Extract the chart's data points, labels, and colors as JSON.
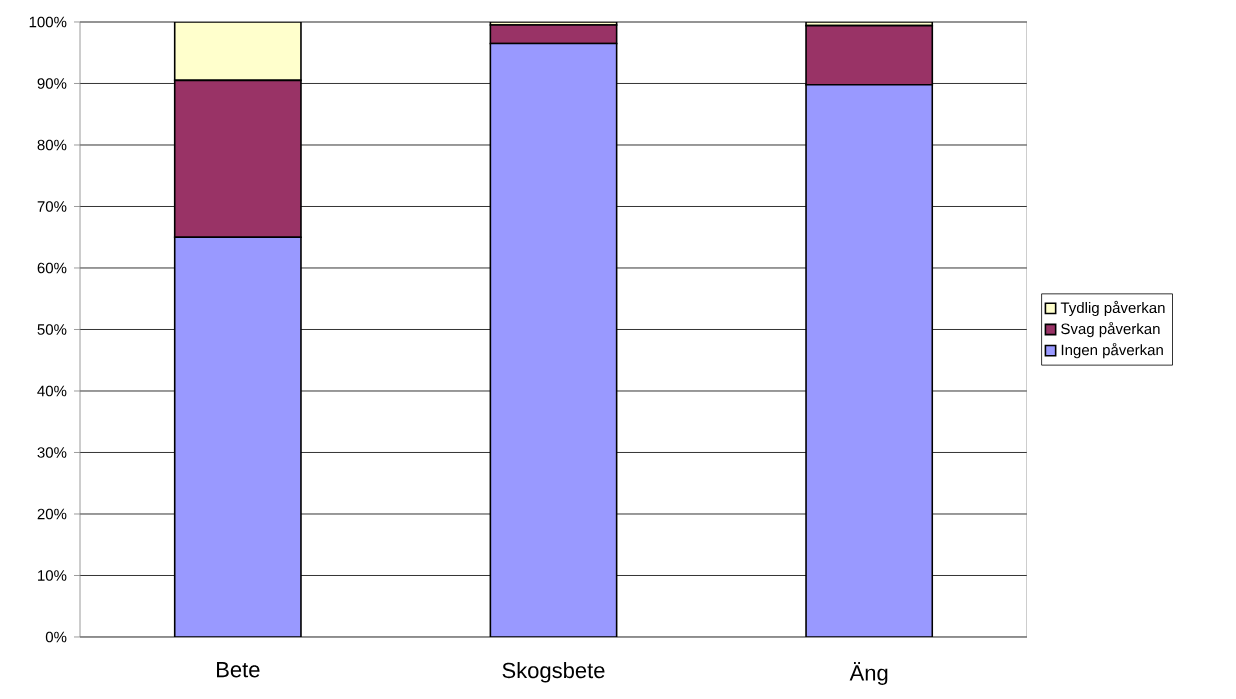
{
  "chart_data": {
    "type": "bar",
    "stacked": true,
    "categories": [
      "Bete",
      "Skogsbete",
      "Äng"
    ],
    "series": [
      {
        "name": "Ingen påverkan",
        "color": "#9999ff",
        "values": [
          65,
          96.5,
          89.8
        ]
      },
      {
        "name": "Svag påverkan",
        "color": "#993366",
        "values": [
          25.5,
          3,
          9.6
        ]
      },
      {
        "name": "Tydlig påverkan",
        "color": "#ffffcc",
        "values": [
          9.5,
          0.5,
          0.6
        ]
      }
    ],
    "ylim": [
      0,
      100
    ],
    "yticks": [
      {
        "value": 0,
        "label": "0%"
      },
      {
        "value": 10,
        "label": "10%"
      },
      {
        "value": 20,
        "label": "20%"
      },
      {
        "value": 30,
        "label": "30%"
      },
      {
        "value": 40,
        "label": "40%"
      },
      {
        "value": 50,
        "label": "50%"
      },
      {
        "value": 60,
        "label": "60%"
      },
      {
        "value": 70,
        "label": "70%"
      },
      {
        "value": 80,
        "label": "80%"
      },
      {
        "value": 90,
        "label": "90%"
      },
      {
        "value": 100,
        "label": "100%"
      }
    ],
    "grid": "y",
    "legend": "right"
  }
}
